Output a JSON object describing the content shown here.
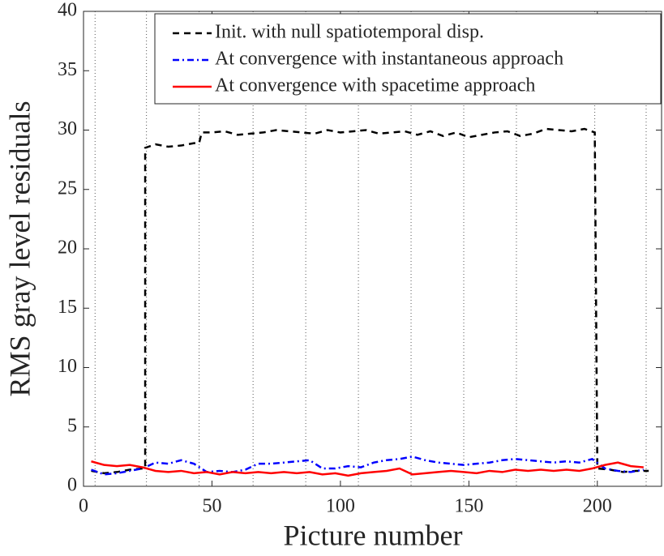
{
  "chart_data": {
    "type": "line",
    "xlabel": "Picture number",
    "ylabel": "RMS gray level residuals",
    "xlim": [
      0,
      225
    ],
    "ylim": [
      0,
      40
    ],
    "xticks": [
      0,
      50,
      100,
      150,
      200
    ],
    "yticks": [
      0,
      5,
      10,
      15,
      20,
      25,
      30,
      35,
      40
    ],
    "vlines": [
      4.5,
      24.5,
      45,
      66,
      86.5,
      107,
      127.5,
      148,
      168.5,
      199,
      219
    ],
    "legend": "upper right",
    "series": [
      {
        "name": "Init. with null spatiotemporal disp.",
        "color": "#000000",
        "dash": "8,6",
        "x": [
          3,
          8,
          13,
          18,
          23,
          24,
          24,
          28,
          33,
          38,
          43,
          45,
          46,
          50,
          55,
          60,
          65,
          70,
          75,
          80,
          85,
          90,
          95,
          100,
          105,
          110,
          115,
          120,
          125,
          130,
          135,
          140,
          145,
          150,
          155,
          160,
          165,
          170,
          175,
          180,
          185,
          190,
          195,
          199,
          200,
          205,
          210,
          215,
          220
        ],
        "values": [
          1.3,
          1.1,
          1.2,
          1.4,
          1.5,
          1.5,
          28.5,
          28.8,
          28.6,
          28.7,
          28.9,
          28.9,
          29.8,
          29.8,
          29.9,
          29.6,
          29.7,
          29.8,
          30.0,
          29.9,
          29.8,
          29.7,
          30.0,
          29.8,
          29.9,
          30.0,
          29.7,
          29.8,
          29.9,
          29.6,
          29.9,
          29.5,
          29.8,
          29.4,
          29.6,
          29.8,
          29.9,
          29.5,
          29.7,
          30.1,
          30.0,
          29.9,
          30.1,
          29.8,
          1.5,
          1.4,
          1.2,
          1.3,
          1.3
        ]
      },
      {
        "name": "At convergence with instantaneous approach",
        "color": "#0000ff",
        "dash": "8,4,2,4",
        "x": [
          3,
          8,
          13,
          18,
          23,
          28,
          33,
          38,
          43,
          48,
          53,
          58,
          63,
          68,
          73,
          78,
          83,
          88,
          93,
          98,
          103,
          108,
          113,
          118,
          123,
          128,
          133,
          138,
          143,
          148,
          153,
          158,
          163,
          168,
          173,
          178,
          183,
          188,
          193,
          198,
          203,
          208,
          213,
          218
        ],
        "values": [
          1.4,
          1.0,
          1.1,
          1.3,
          1.5,
          2.0,
          1.9,
          2.2,
          1.9,
          1.2,
          1.3,
          1.2,
          1.4,
          1.9,
          1.9,
          2.0,
          2.1,
          2.2,
          1.5,
          1.5,
          1.7,
          1.6,
          2.0,
          2.2,
          2.3,
          2.5,
          2.2,
          2.0,
          1.9,
          1.8,
          1.9,
          2.0,
          2.2,
          2.3,
          2.2,
          2.1,
          2.0,
          2.1,
          2.0,
          2.3,
          1.5,
          1.3,
          1.2,
          1.4
        ]
      },
      {
        "name": "At convergence with spacetime approach",
        "color": "#ff0000",
        "dash": "none",
        "x": [
          3,
          8,
          13,
          18,
          23,
          28,
          33,
          38,
          43,
          48,
          53,
          58,
          63,
          68,
          73,
          78,
          83,
          88,
          93,
          98,
          103,
          108,
          113,
          118,
          123,
          128,
          133,
          138,
          143,
          148,
          153,
          158,
          163,
          168,
          173,
          178,
          183,
          188,
          193,
          198,
          203,
          208,
          213,
          218
        ],
        "values": [
          2.1,
          1.8,
          1.7,
          1.8,
          1.6,
          1.3,
          1.2,
          1.3,
          1.1,
          1.2,
          1.0,
          1.2,
          1.1,
          1.2,
          1.1,
          1.2,
          1.1,
          1.2,
          1.0,
          1.1,
          0.9,
          1.1,
          1.2,
          1.3,
          1.5,
          1.0,
          1.1,
          1.2,
          1.3,
          1.2,
          1.1,
          1.3,
          1.2,
          1.4,
          1.3,
          1.4,
          1.3,
          1.4,
          1.3,
          1.5,
          1.8,
          2.0,
          1.7,
          1.6
        ]
      }
    ]
  }
}
